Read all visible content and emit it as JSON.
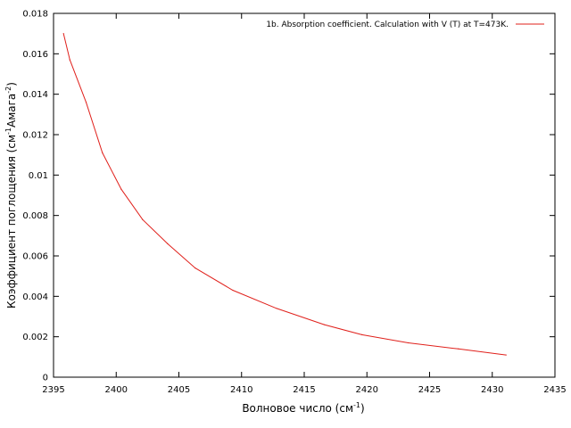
{
  "chart_data": {
    "type": "line",
    "title": "",
    "xlabel": "Волновое число (см",
    "xlabel_sup": "-1",
    "xlabel_suffix": ")",
    "ylabel": "Коэффициент поглощения (см",
    "ylabel_sup1": "-1",
    "ylabel_mid": "Амага",
    "ylabel_sup2": "-2",
    "ylabel_suffix": ")",
    "xlim": [
      2395,
      2435
    ],
    "ylim": [
      0,
      0.018
    ],
    "xticks": [
      "2395",
      "2400",
      "2405",
      "2410",
      "2415",
      "2420",
      "2425",
      "2430",
      "2435"
    ],
    "yticks": [
      "0",
      "0.002",
      "0.004",
      "0.006",
      "0.008",
      "0.01",
      "0.012",
      "0.014",
      "0.016",
      "0.018"
    ],
    "grid": false,
    "legend_position": "top-right",
    "series": [
      {
        "name": "1b. Absorption coefficient. Calculation with V (T) at T=473K.",
        "color": "#e0201b",
        "x": [
          2395.8,
          2396.3,
          2397.6,
          2398.9,
          2400.4,
          2402.1,
          2404.1,
          2406.3,
          2409.3,
          2412.8,
          2416.6,
          2419.6,
          2423.3,
          2427.3,
          2431.1
        ],
        "y": [
          0.017,
          0.0157,
          0.0136,
          0.0111,
          0.0093,
          0.0078,
          0.0066,
          0.0054,
          0.0043,
          0.0034,
          0.0026,
          0.0021,
          0.0017,
          0.0014,
          0.0011
        ]
      }
    ]
  }
}
